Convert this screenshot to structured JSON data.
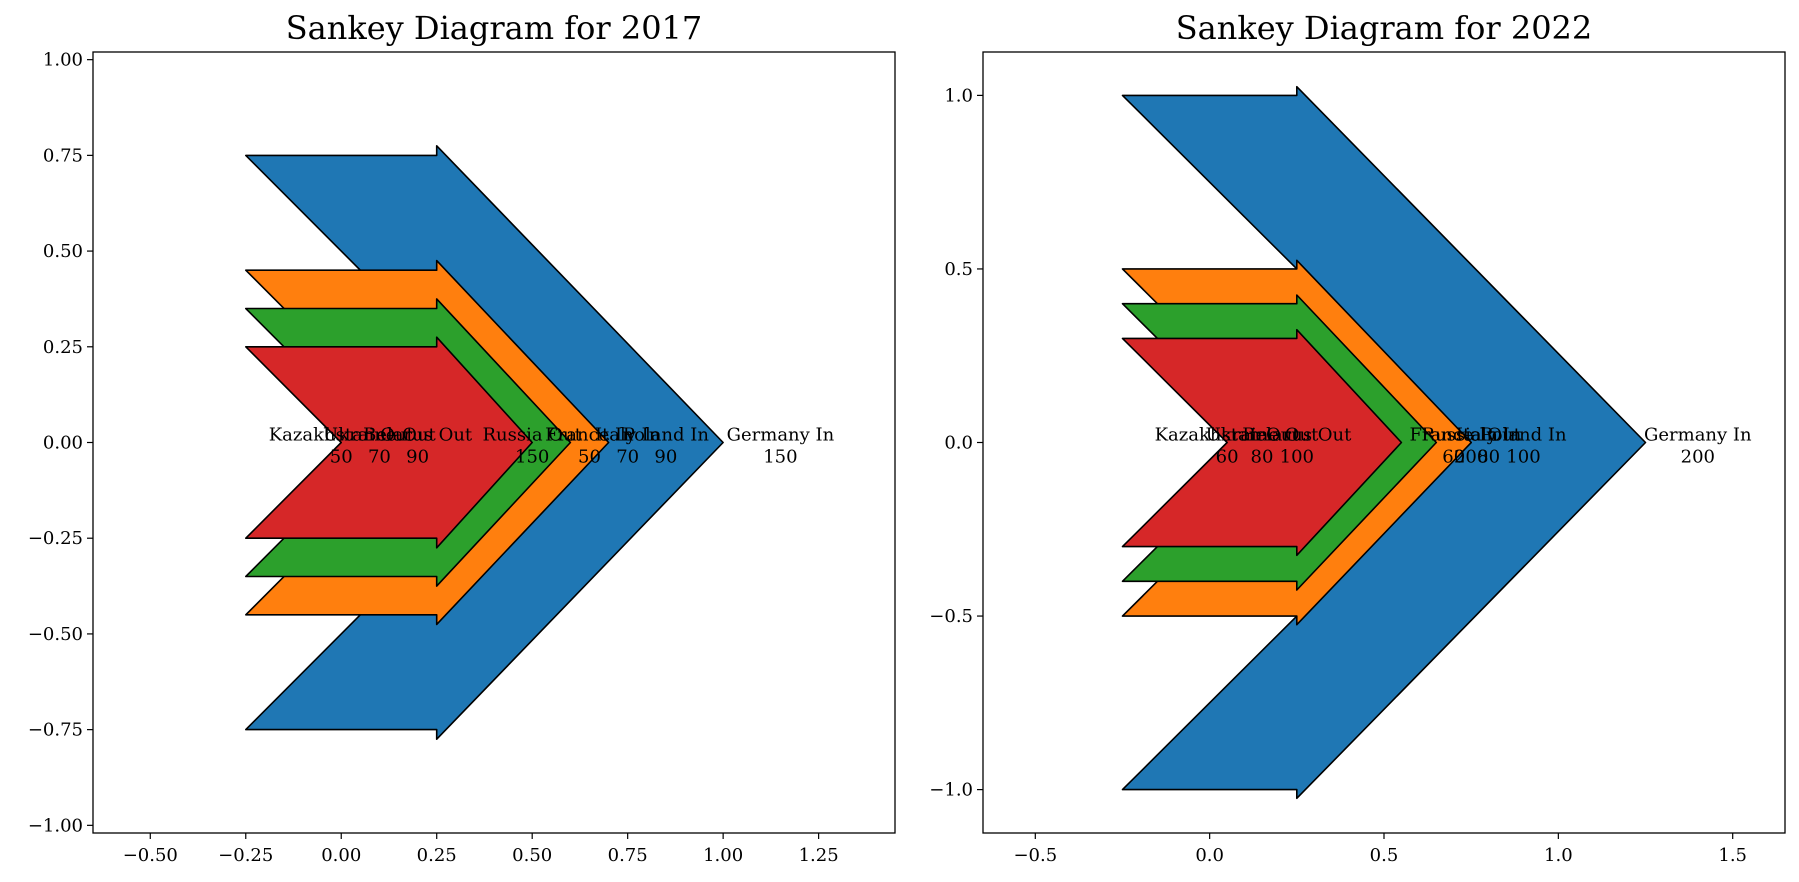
{
  "chart_data": [
    {
      "type": "sankey",
      "title": "Sankey Diagram for 2017",
      "xlim": [
        -0.65,
        1.45
      ],
      "ylim": [
        -1.02,
        1.02
      ],
      "xticks": [
        -0.5,
        -0.25,
        0.0,
        0.25,
        0.5,
        0.75,
        1.0,
        1.25
      ],
      "xtick_labels": [
        "−0.50",
        "−0.25",
        "0.00",
        "0.25",
        "0.50",
        "0.75",
        "1.00",
        "1.25"
      ],
      "yticks": [
        -1.0,
        -0.75,
        -0.5,
        -0.25,
        0.0,
        0.25,
        0.5,
        0.75,
        1.0
      ],
      "ytick_labels": [
        "−1.00",
        "−0.75",
        "−0.50",
        "−0.25",
        "0.00",
        "0.25",
        "0.50",
        "0.75",
        "1.00"
      ],
      "flows": [
        {
          "source": "Russia Out",
          "target": "Germany In",
          "value": 150,
          "color": "#1f77b4"
        },
        {
          "source": "Belarus Out",
          "target": "Poland In",
          "value": 90,
          "color": "#ff7f0e"
        },
        {
          "source": "Ukraine Out",
          "target": "Italy In",
          "value": 70,
          "color": "#2ca02c"
        },
        {
          "source": "Kazakhstan Out",
          "target": "France In",
          "value": 50,
          "color": "#d62728"
        }
      ]
    },
    {
      "type": "sankey",
      "title": "Sankey Diagram for 2022",
      "xlim": [
        -0.65,
        1.65
      ],
      "ylim": [
        -1.125,
        1.125
      ],
      "xticks": [
        -0.5,
        0.0,
        0.5,
        1.0,
        1.5
      ],
      "xtick_labels": [
        "−0.5",
        "0.0",
        "0.5",
        "1.0",
        "1.5"
      ],
      "yticks": [
        -1.0,
        -0.5,
        0.0,
        0.5,
        1.0
      ],
      "ytick_labels": [
        "−1.0",
        "−0.5",
        "0.0",
        "0.5",
        "1.0"
      ],
      "flows": [
        {
          "source": "Russia Out",
          "target": "Germany In",
          "value": 200,
          "color": "#1f77b4"
        },
        {
          "source": "Belarus Out",
          "target": "Poland In",
          "value": 100,
          "color": "#ff7f0e"
        },
        {
          "source": "Ukraine Out",
          "target": "Italy In",
          "value": 80,
          "color": "#2ca02c"
        },
        {
          "source": "Kazakhstan Out",
          "target": "France In",
          "value": 60,
          "color": "#d62728"
        }
      ]
    }
  ]
}
